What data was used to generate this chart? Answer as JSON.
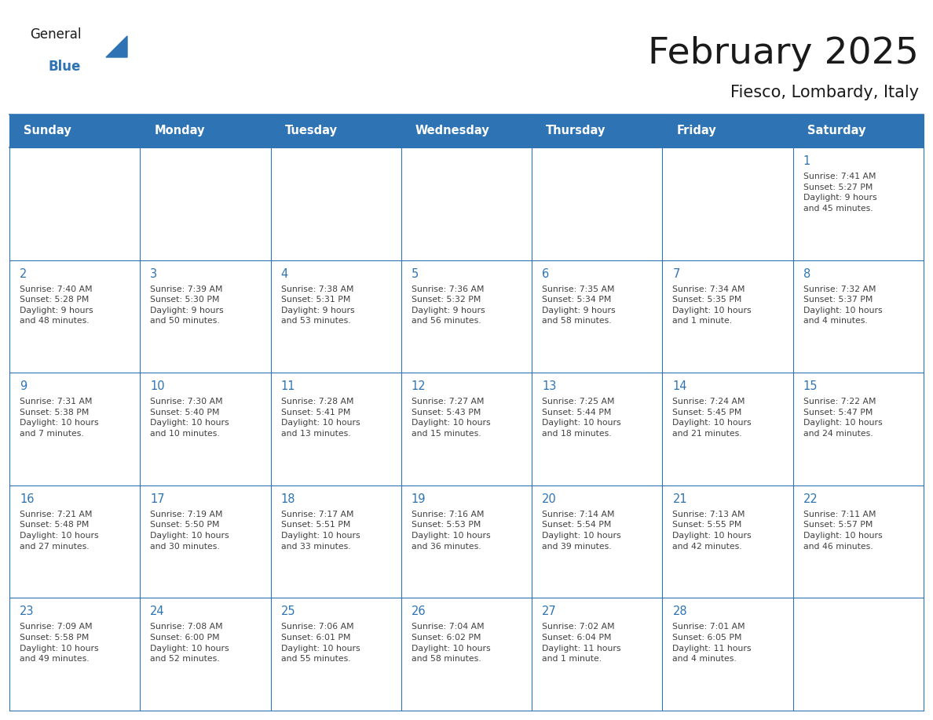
{
  "title": "February 2025",
  "subtitle": "Fiesco, Lombardy, Italy",
  "header_bg": "#2E74B5",
  "header_text_color": "#FFFFFF",
  "day_text_color": "#2E74B5",
  "border_color": "#2E74B5",
  "info_text_color": "#404040",
  "days_of_week": [
    "Sunday",
    "Monday",
    "Tuesday",
    "Wednesday",
    "Thursday",
    "Friday",
    "Saturday"
  ],
  "weeks": [
    [
      {
        "day": "",
        "info": ""
      },
      {
        "day": "",
        "info": ""
      },
      {
        "day": "",
        "info": ""
      },
      {
        "day": "",
        "info": ""
      },
      {
        "day": "",
        "info": ""
      },
      {
        "day": "",
        "info": ""
      },
      {
        "day": "1",
        "info": "Sunrise: 7:41 AM\nSunset: 5:27 PM\nDaylight: 9 hours\nand 45 minutes."
      }
    ],
    [
      {
        "day": "2",
        "info": "Sunrise: 7:40 AM\nSunset: 5:28 PM\nDaylight: 9 hours\nand 48 minutes."
      },
      {
        "day": "3",
        "info": "Sunrise: 7:39 AM\nSunset: 5:30 PM\nDaylight: 9 hours\nand 50 minutes."
      },
      {
        "day": "4",
        "info": "Sunrise: 7:38 AM\nSunset: 5:31 PM\nDaylight: 9 hours\nand 53 minutes."
      },
      {
        "day": "5",
        "info": "Sunrise: 7:36 AM\nSunset: 5:32 PM\nDaylight: 9 hours\nand 56 minutes."
      },
      {
        "day": "6",
        "info": "Sunrise: 7:35 AM\nSunset: 5:34 PM\nDaylight: 9 hours\nand 58 minutes."
      },
      {
        "day": "7",
        "info": "Sunrise: 7:34 AM\nSunset: 5:35 PM\nDaylight: 10 hours\nand 1 minute."
      },
      {
        "day": "8",
        "info": "Sunrise: 7:32 AM\nSunset: 5:37 PM\nDaylight: 10 hours\nand 4 minutes."
      }
    ],
    [
      {
        "day": "9",
        "info": "Sunrise: 7:31 AM\nSunset: 5:38 PM\nDaylight: 10 hours\nand 7 minutes."
      },
      {
        "day": "10",
        "info": "Sunrise: 7:30 AM\nSunset: 5:40 PM\nDaylight: 10 hours\nand 10 minutes."
      },
      {
        "day": "11",
        "info": "Sunrise: 7:28 AM\nSunset: 5:41 PM\nDaylight: 10 hours\nand 13 minutes."
      },
      {
        "day": "12",
        "info": "Sunrise: 7:27 AM\nSunset: 5:43 PM\nDaylight: 10 hours\nand 15 minutes."
      },
      {
        "day": "13",
        "info": "Sunrise: 7:25 AM\nSunset: 5:44 PM\nDaylight: 10 hours\nand 18 minutes."
      },
      {
        "day": "14",
        "info": "Sunrise: 7:24 AM\nSunset: 5:45 PM\nDaylight: 10 hours\nand 21 minutes."
      },
      {
        "day": "15",
        "info": "Sunrise: 7:22 AM\nSunset: 5:47 PM\nDaylight: 10 hours\nand 24 minutes."
      }
    ],
    [
      {
        "day": "16",
        "info": "Sunrise: 7:21 AM\nSunset: 5:48 PM\nDaylight: 10 hours\nand 27 minutes."
      },
      {
        "day": "17",
        "info": "Sunrise: 7:19 AM\nSunset: 5:50 PM\nDaylight: 10 hours\nand 30 minutes."
      },
      {
        "day": "18",
        "info": "Sunrise: 7:17 AM\nSunset: 5:51 PM\nDaylight: 10 hours\nand 33 minutes."
      },
      {
        "day": "19",
        "info": "Sunrise: 7:16 AM\nSunset: 5:53 PM\nDaylight: 10 hours\nand 36 minutes."
      },
      {
        "day": "20",
        "info": "Sunrise: 7:14 AM\nSunset: 5:54 PM\nDaylight: 10 hours\nand 39 minutes."
      },
      {
        "day": "21",
        "info": "Sunrise: 7:13 AM\nSunset: 5:55 PM\nDaylight: 10 hours\nand 42 minutes."
      },
      {
        "day": "22",
        "info": "Sunrise: 7:11 AM\nSunset: 5:57 PM\nDaylight: 10 hours\nand 46 minutes."
      }
    ],
    [
      {
        "day": "23",
        "info": "Sunrise: 7:09 AM\nSunset: 5:58 PM\nDaylight: 10 hours\nand 49 minutes."
      },
      {
        "day": "24",
        "info": "Sunrise: 7:08 AM\nSunset: 6:00 PM\nDaylight: 10 hours\nand 52 minutes."
      },
      {
        "day": "25",
        "info": "Sunrise: 7:06 AM\nSunset: 6:01 PM\nDaylight: 10 hours\nand 55 minutes."
      },
      {
        "day": "26",
        "info": "Sunrise: 7:04 AM\nSunset: 6:02 PM\nDaylight: 10 hours\nand 58 minutes."
      },
      {
        "day": "27",
        "info": "Sunrise: 7:02 AM\nSunset: 6:04 PM\nDaylight: 11 hours\nand 1 minute."
      },
      {
        "day": "28",
        "info": "Sunrise: 7:01 AM\nSunset: 6:05 PM\nDaylight: 11 hours\nand 4 minutes."
      },
      {
        "day": "",
        "info": ""
      }
    ]
  ]
}
